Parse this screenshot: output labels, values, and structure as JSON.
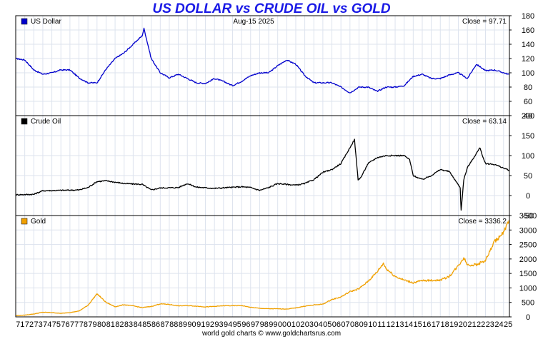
{
  "title": "US DOLLAR vs CRUDE OIL vs GOLD",
  "date_label": "Aug-15  2025",
  "footer": "world gold charts © www.goldchartsrus.com",
  "chart_data": [
    {
      "type": "line",
      "name": "US Dollar",
      "color": "#0000cc",
      "close_label": "Close = 97.71",
      "ylim": [
        40,
        180
      ],
      "yticks": [
        40,
        60,
        80,
        100,
        120,
        140,
        160,
        180
      ],
      "x": [
        1971,
        1972,
        1973,
        1974,
        1975,
        1976,
        1977,
        1978,
        1979,
        1980,
        1981,
        1982,
        1983,
        1984,
        1985,
        1985.2,
        1986,
        1987,
        1988,
        1989,
        1990,
        1991,
        1992,
        1993,
        1994,
        1995,
        1996,
        1997,
        1998,
        1999,
        2000,
        2001,
        2002,
        2003,
        2004,
        2005,
        2006,
        2007,
        2008,
        2009,
        2010,
        2011,
        2012,
        2013,
        2014,
        2015,
        2016,
        2017,
        2018,
        2019,
        2020,
        2021,
        2022,
        2023,
        2024,
        2025.6
      ],
      "values": [
        120,
        118,
        104,
        98,
        100,
        104,
        104,
        93,
        86,
        86,
        105,
        120,
        128,
        140,
        152,
        162,
        120,
        100,
        93,
        98,
        92,
        86,
        85,
        92,
        88,
        82,
        88,
        96,
        100,
        100,
        110,
        118,
        112,
        96,
        86,
        86,
        86,
        80,
        72,
        80,
        80,
        74,
        80,
        80,
        82,
        95,
        98,
        92,
        92,
        97,
        100,
        92,
        112,
        103,
        104,
        97.71
      ]
    },
    {
      "type": "line",
      "name": "Crude Oil",
      "color": "#000000",
      "close_label": "Close = 63.14",
      "ylim": [
        -50,
        200
      ],
      "yticks": [
        -50,
        0,
        50,
        100,
        150,
        200
      ],
      "x": [
        1971,
        1973,
        1974,
        1978,
        1979,
        1980,
        1981,
        1983,
        1985,
        1986,
        1987,
        1989,
        1990,
        1991,
        1993,
        1996,
        1997,
        1998,
        1999,
        2000,
        2002,
        2003,
        2004,
        2005,
        2006,
        2007,
        2008.5,
        2008.9,
        2009.2,
        2010,
        2011,
        2012,
        2013,
        2014,
        2014.6,
        2015,
        2016,
        2017,
        2018,
        2019,
        2020.2,
        2020.3,
        2020.6,
        2021,
        2022.4,
        2022.8,
        2023,
        2024,
        2025.6
      ],
      "values": [
        2,
        3,
        12,
        14,
        20,
        35,
        37,
        30,
        28,
        14,
        19,
        20,
        30,
        21,
        18,
        22,
        20,
        13,
        20,
        30,
        26,
        30,
        40,
        58,
        65,
        80,
        140,
        40,
        45,
        80,
        95,
        100,
        100,
        100,
        90,
        50,
        40,
        50,
        65,
        60,
        20,
        -37,
        40,
        70,
        120,
        90,
        80,
        78,
        63.14
      ]
    },
    {
      "type": "line",
      "name": "Gold",
      "color": "#f0a000",
      "close_label": "Close = 3336.2",
      "ylim": [
        0,
        3500
      ],
      "yticks": [
        0,
        500,
        1000,
        1500,
        2000,
        2500,
        3000,
        3500
      ],
      "x": [
        1971,
        1972,
        1973,
        1974,
        1975,
        1976,
        1977,
        1978,
        1979,
        1980,
        1981,
        1982,
        1983,
        1984,
        1985,
        1986,
        1987,
        1988,
        1989,
        1990,
        1991,
        1992,
        1993,
        1994,
        1995,
        1996,
        1997,
        1998,
        1999,
        2000,
        2001,
        2002,
        2003,
        2004,
        2005,
        2006,
        2007,
        2008,
        2009,
        2010,
        2011,
        2011.7,
        2012,
        2013,
        2014,
        2015,
        2016,
        2017,
        2018,
        2019,
        2020,
        2020.6,
        2021,
        2022,
        2023,
        2024,
        2025,
        2025.6
      ],
      "values": [
        40,
        60,
        100,
        160,
        150,
        120,
        150,
        200,
        400,
        800,
        500,
        350,
        420,
        380,
        320,
        360,
        450,
        430,
        380,
        390,
        370,
        345,
        360,
        385,
        385,
        390,
        330,
        295,
        280,
        280,
        270,
        310,
        370,
        410,
        440,
        600,
        690,
        870,
        970,
        1230,
        1550,
        1850,
        1670,
        1400,
        1270,
        1180,
        1250,
        1260,
        1270,
        1400,
        1770,
        2050,
        1800,
        1800,
        1950,
        2600,
        2900,
        3336.2
      ]
    }
  ],
  "x_tick_labels": [
    "71",
    "72",
    "73",
    "74",
    "75",
    "76",
    "77",
    "78",
    "79",
    "80",
    "81",
    "82",
    "83",
    "84",
    "85",
    "86",
    "87",
    "88",
    "89",
    "90",
    "91",
    "92",
    "93",
    "94",
    "95",
    "96",
    "97",
    "98",
    "99",
    "00",
    "01",
    "02",
    "03",
    "04",
    "05",
    "06",
    "07",
    "08",
    "09",
    "10",
    "11",
    "12",
    "13",
    "14",
    "15",
    "16",
    "17",
    "18",
    "19",
    "20",
    "21",
    "22",
    "23",
    "24",
    "25"
  ]
}
